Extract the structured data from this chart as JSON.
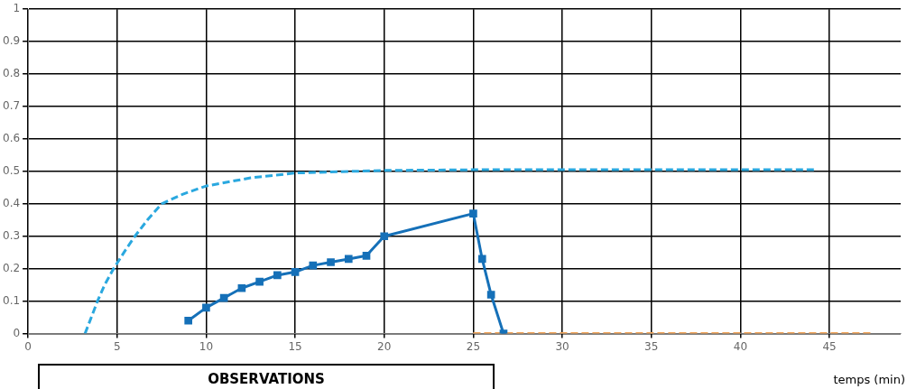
{
  "chart_data": {
    "type": "line",
    "xlabel": "temps (min)",
    "annotations": [
      "OBSERVATIONS"
    ],
    "xlim": [
      0,
      49
    ],
    "xticks": [
      0,
      5,
      10,
      15,
      20,
      25,
      30,
      35,
      40,
      45
    ],
    "ylim": [
      0,
      1
    ],
    "yticks": [
      0,
      0.1,
      0.2,
      0.3,
      0.4,
      0.5,
      0.6,
      0.7,
      0.8,
      0.9,
      1
    ],
    "grid": true,
    "legend": false,
    "series": [
      {
        "color": "#2aa8df",
        "line_style": "dashed",
        "marker": "none",
        "x": [
          3.2,
          3.9,
          4.3,
          4.8,
          5.5,
          6,
          6.7,
          7.5,
          8.7,
          10,
          12.5,
          15,
          20,
          25,
          44.3
        ],
        "values": [
          0,
          0.1,
          0.15,
          0.2,
          0.26,
          0.3,
          0.35,
          0.4,
          0.43,
          0.455,
          0.48,
          0.495,
          0.503,
          0.505,
          0.505
        ]
      },
      {
        "color": "#1570b8",
        "line_style": "solid",
        "marker": "square",
        "x": [
          9,
          10,
          11,
          12,
          13,
          14,
          15,
          16,
          17,
          18,
          19,
          20,
          25,
          25.5,
          26,
          26.7
        ],
        "values": [
          0.04,
          0.08,
          0.11,
          0.14,
          0.16,
          0.18,
          0.19,
          0.21,
          0.22,
          0.23,
          0.24,
          0.3,
          0.37,
          0.23,
          0.12,
          0
        ]
      },
      {
        "color": "#f2a65a",
        "line_style": "dashed",
        "marker": "none",
        "x": [
          25,
          47.5
        ],
        "values": [
          0,
          0
        ]
      }
    ]
  }
}
